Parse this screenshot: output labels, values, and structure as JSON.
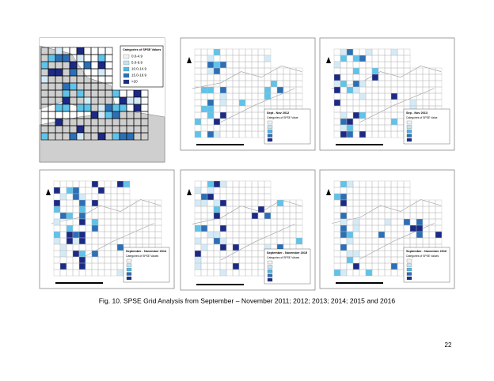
{
  "caption": "Fig. 10. SPSE Grid Analysis from September – November 2011; 2012; 2013; 2014; 2015 and 2016",
  "page_number": "22",
  "panels": [
    {
      "legend_title": "Categories of SPSE Values",
      "legend_items": [
        "0.0-4.9",
        "5.0-9.9",
        "10.0-14.9",
        "15.0-19.9",
        ">20"
      ]
    },
    {
      "period": "Sept - Nov 2012",
      "legend_title": "Categories of SPSE Value"
    },
    {
      "period": "Sep - Nov 2013",
      "legend_title": "Categories of SPSE Value"
    },
    {
      "period": "September - November 2014",
      "legend_title": "Categories of SPSE Values"
    },
    {
      "period": "September - November 2015",
      "legend_title": "Categories of SPSE Values"
    },
    {
      "period": "September - November 2016",
      "legend_title": "Categories of SPSE Values"
    }
  ]
}
